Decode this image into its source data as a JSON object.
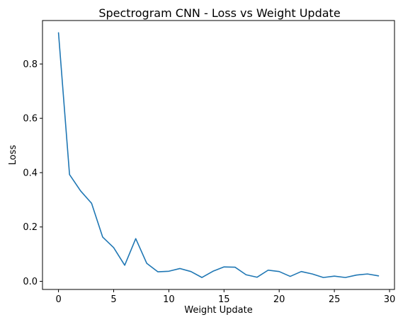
{
  "chart_data": {
    "type": "line",
    "title": "Spectrogram CNN - Loss vs Weight Update",
    "xlabel": "Weight Update",
    "ylabel": "Loss",
    "xlim": [
      -1.45,
      30.45
    ],
    "ylim": [
      -0.03,
      0.96
    ],
    "xticks": [
      0,
      5,
      10,
      15,
      20,
      25,
      30
    ],
    "yticks": [
      0.0,
      0.2,
      0.4,
      0.6,
      0.8
    ],
    "ytick_labels": [
      "0.0",
      "0.2",
      "0.4",
      "0.6",
      "0.8"
    ],
    "grid": false,
    "series": [
      {
        "color": "#1f77b4",
        "x": [
          0,
          1,
          2,
          3,
          4,
          5,
          6,
          7,
          8,
          9,
          10,
          11,
          12,
          13,
          14,
          15,
          16,
          17,
          18,
          19,
          20,
          21,
          22,
          23,
          24,
          25,
          26,
          27,
          28,
          29
        ],
        "y": [
          0.915,
          0.393,
          0.333,
          0.287,
          0.163,
          0.124,
          0.059,
          0.157,
          0.066,
          0.035,
          0.037,
          0.047,
          0.036,
          0.014,
          0.037,
          0.053,
          0.052,
          0.024,
          0.015,
          0.041,
          0.036,
          0.018,
          0.036,
          0.027,
          0.014,
          0.019,
          0.014,
          0.023,
          0.027,
          0.02
        ]
      }
    ]
  }
}
